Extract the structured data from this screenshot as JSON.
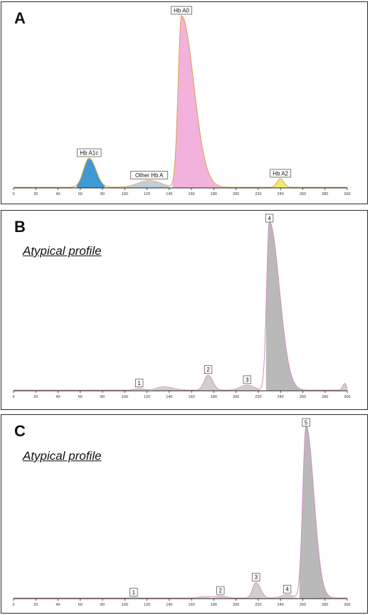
{
  "chart_data": [
    {
      "type": "area",
      "panel_letter": "A",
      "subtitle": "",
      "xlim": [
        0,
        300
      ],
      "x_ticks": [
        "0",
        "20",
        "40",
        "60",
        "80",
        "100",
        "120",
        "140",
        "160",
        "180",
        "200",
        "220",
        "240",
        "260",
        "280",
        "300"
      ],
      "ylim": [
        0,
        100
      ],
      "line_color": "#d9a04a",
      "peaks": [
        {
          "label": "Hb A1c",
          "x": 68,
          "y": 17,
          "wl": 5,
          "wr": 6,
          "fill": "#3f9ad4",
          "from": 57,
          "to": 82
        },
        {
          "label": "Other Hb A",
          "x": 122,
          "y": 4,
          "wl": 10,
          "wr": 10,
          "fill": "#b9cde0",
          "from": 100,
          "to": 140
        },
        {
          "label": "Hb A0",
          "x": 151,
          "y": 100,
          "wl": 3,
          "wr": 11,
          "fill": "#f3b2dc",
          "from": 143,
          "to": 195
        },
        {
          "label": "Hb A2",
          "x": 240,
          "y": 5,
          "wl": 3,
          "wr": 3,
          "fill": "#ecec6c",
          "from": 233,
          "to": 248
        }
      ]
    },
    {
      "type": "area",
      "panel_letter": "B",
      "subtitle": "Atypical profile",
      "xlim": [
        0,
        300
      ],
      "x_ticks": [
        "0",
        "20",
        "40",
        "60",
        "80",
        "100",
        "120",
        "140",
        "160",
        "180",
        "200",
        "220",
        "240",
        "260",
        "280",
        "300"
      ],
      "ylim": [
        0,
        100
      ],
      "line_color": "#d48bc3",
      "peaks": [
        {
          "label": "1",
          "x": 113,
          "y": 1,
          "wl": 4,
          "wr": 4,
          "fill": "#cfcfcf",
          "from": 105,
          "to": 122
        },
        {
          "label": "",
          "x": 135,
          "y": 2,
          "wl": 6,
          "wr": 8,
          "fill": "#cfcfcf",
          "from": 125,
          "to": 150
        },
        {
          "label": "2",
          "x": 175,
          "y": 9,
          "wl": 3.5,
          "wr": 4,
          "fill": "#cfcfcf",
          "from": 165,
          "to": 186
        },
        {
          "label": "3",
          "x": 210,
          "y": 3,
          "wl": 6,
          "wr": 6,
          "fill": "#cfcfcf",
          "from": 196,
          "to": 225
        },
        {
          "label": "4",
          "x": 230,
          "y": 100,
          "wl": 2.5,
          "wr": 9,
          "fill": "#b9b9b9",
          "from": 227,
          "to": 265
        },
        {
          "label": "",
          "x": 298,
          "y": 4,
          "wl": 2,
          "wr": 1.2,
          "fill": "#cfcfcf",
          "from": 292,
          "to": 301
        }
      ]
    },
    {
      "type": "area",
      "panel_letter": "C",
      "subtitle": "Atypical profile",
      "xlim": [
        0,
        300
      ],
      "x_ticks": [
        "0",
        "20",
        "40",
        "60",
        "80",
        "100",
        "120",
        "140",
        "160",
        "180",
        "200",
        "220",
        "240",
        "260",
        "280",
        "300"
      ],
      "ylim": [
        0,
        100
      ],
      "line_color": "#d48bc3",
      "peaks": [
        {
          "label": "1",
          "x": 108,
          "y": 0.3,
          "wl": 4,
          "wr": 4,
          "fill": "#cfcfcf",
          "from": 100,
          "to": 116
        },
        {
          "label": "",
          "x": 172,
          "y": 0.8,
          "wl": 5,
          "wr": 5,
          "fill": "#cfcfcf",
          "from": 163,
          "to": 182
        },
        {
          "label": "2",
          "x": 186,
          "y": 1.2,
          "wl": 5,
          "wr": 5,
          "fill": "#cfcfcf",
          "from": 177,
          "to": 196
        },
        {
          "label": "3",
          "x": 218,
          "y": 9,
          "wl": 3,
          "wr": 4,
          "fill": "#cfcfcf",
          "from": 209,
          "to": 228
        },
        {
          "label": "4",
          "x": 246,
          "y": 2,
          "wl": 5,
          "wr": 5,
          "fill": "#cfcfcf",
          "from": 237,
          "to": 256
        },
        {
          "label": "5",
          "x": 263,
          "y": 100,
          "wl": 3,
          "wr": 7,
          "fill": "#b9b9b9",
          "from": 257,
          "to": 292
        }
      ]
    }
  ]
}
